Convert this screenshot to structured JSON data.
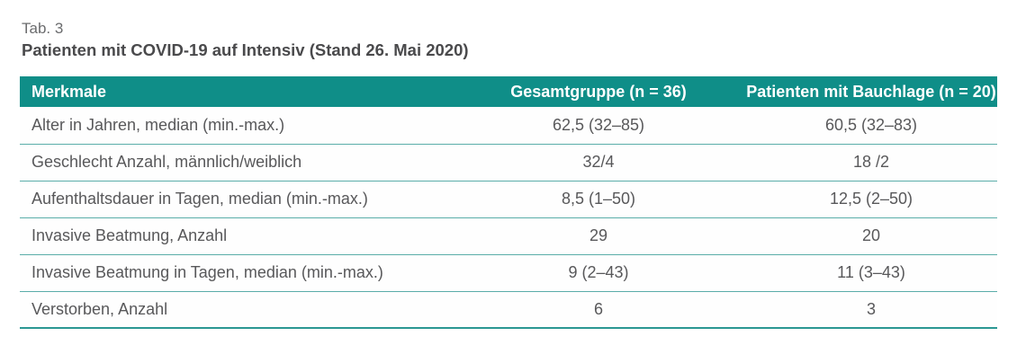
{
  "caption": "Tab. 3",
  "title": "Patienten mit COVID-19 auf Intensiv (Stand 26. Mai 2020)",
  "colors": {
    "header_bg": "#0f8e88",
    "header_text": "#ffffff",
    "row_divider": "#5aada9",
    "bottom_border": "#2b9793",
    "caption_text": "#6b6c6e",
    "title_text": "#4a4a4c",
    "body_text": "#58585a"
  },
  "table": {
    "headers": [
      "Merkmale",
      "Gesamtgruppe (n = 36)",
      "Patienten mit Bauchlage (n = 20)"
    ],
    "rows": [
      {
        "merkmal": "Alter in Jahren, median (min.-max.)",
        "gesamtgruppe": "62,5 (32–85)",
        "bauchlage": "60,5 (32–83)"
      },
      {
        "merkmal": "Geschlecht Anzahl, männlich/weiblich",
        "gesamtgruppe": "32/4",
        "bauchlage": "18 /2"
      },
      {
        "merkmal": "Aufenthaltsdauer in Tagen, median (min.-max.)",
        "gesamtgruppe": "8,5 (1–50)",
        "bauchlage": "12,5 (2–50)"
      },
      {
        "merkmal": "Invasive Beatmung, Anzahl",
        "gesamtgruppe": "29",
        "bauchlage": "20"
      },
      {
        "merkmal": "Invasive Beatmung in Tagen, median (min.-max.)",
        "gesamtgruppe": "9 (2–43)",
        "bauchlage": "11 (3–43)"
      },
      {
        "merkmal": "Verstorben, Anzahl",
        "gesamtgruppe": "6",
        "bauchlage": "3"
      }
    ]
  }
}
